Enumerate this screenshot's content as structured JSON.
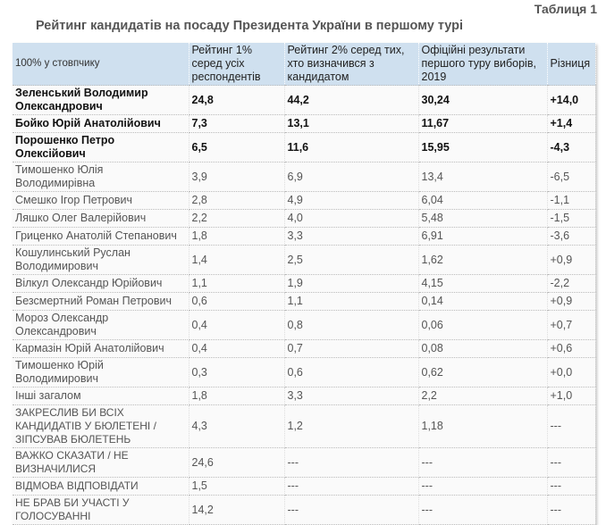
{
  "table_label": "Таблиця 1",
  "title": "Рейтинг кандидатів на посаду Президента України в першому турі",
  "header": {
    "col1": "100% у стовпчику",
    "col2": "Рейтинг 1% серед усіх респондентів",
    "col3": "Рейтинг 2% серед тих, хто визначився з кандидатом",
    "col4": "Офіційні результати першого туру виборів, 2019",
    "col5": "Різниця"
  },
  "rows": [
    {
      "name": "Зеленський Володимир Олександрович",
      "r1": "24,8",
      "r2": "44,2",
      "official": "30,24",
      "diff": "+14,0",
      "bold": true
    },
    {
      "name": "Бойко Юрій Анатолійович",
      "r1": "7,3",
      "r2": "13,1",
      "official": "11,67",
      "diff": "+1,4",
      "bold": true
    },
    {
      "name": "Порошенко Петро Олексійович",
      "r1": "6,5",
      "r2": "11,6",
      "official": "15,95",
      "diff": "-4,3",
      "bold": true
    },
    {
      "name": "Тимошенко Юлія Володимирівна",
      "r1": "3,9",
      "r2": "6,9",
      "official": "13,4",
      "diff": "-6,5"
    },
    {
      "name": "Смешко Ігор Петрович",
      "r1": "2,8",
      "r2": "4,9",
      "official": "6,04",
      "diff": "-1,1"
    },
    {
      "name": "Ляшко Олег Валерійович",
      "r1": "2,2",
      "r2": "4,0",
      "official": "5,48",
      "diff": "-1,5"
    },
    {
      "name": "Гриценко Анатолій Степанович",
      "r1": "1,8",
      "r2": "3,3",
      "official": "6,91",
      "diff": "-3,6"
    },
    {
      "name": "Кошулинський Руслан Володимирович",
      "r1": "1,4",
      "r2": "2,5",
      "official": "1,62",
      "diff": "+0,9"
    },
    {
      "name": "Вілкул Олександр Юрійович",
      "r1": "1,1",
      "r2": "1,9",
      "official": "4,15",
      "diff": "-2,2"
    },
    {
      "name": "Безсмертний Роман Петрович",
      "r1": "0,6",
      "r2": "1,1",
      "official": "0,14",
      "diff": "+0,9"
    },
    {
      "name": "Мороз Олександр Олександрович",
      "r1": "0,4",
      "r2": "0,8",
      "official": "0,06",
      "diff": "+0,7"
    },
    {
      "name": "Кармазін Юрій Анатолійович",
      "r1": "0,4",
      "r2": "0,7",
      "official": "0,08",
      "diff": "+0,6"
    },
    {
      "name": "Тимошенко Юрій Володимирович",
      "r1": "0,3",
      "r2": "0,6",
      "official": "0,62",
      "diff": "+0,0"
    },
    {
      "name": "Інші загалом",
      "r1": "1,8",
      "r2": "3,3",
      "official": "2,2",
      "diff": "+1,0"
    },
    {
      "name": "ЗАКРЕСЛИВ БИ ВСІХ КАНДИДАТІВ У БЮЛЕТЕНІ / ЗІПСУВАВ БЮЛЕТЕНЬ",
      "r1": "4,3",
      "r2": "1,2",
      "official": "1,18",
      "diff": "---"
    },
    {
      "name": "ВАЖКО СКАЗАТИ / НЕ ВИЗНАЧИЛИСЯ",
      "r1": "24,6",
      "r2": "---",
      "official": "---",
      "diff": "---"
    },
    {
      "name": "ВІДМОВА ВІДПОВІДАТИ",
      "r1": "1,5",
      "r2": "---",
      "official": "---",
      "diff": "---"
    },
    {
      "name": "НЕ БРАВ БИ УЧАСТІ У ГОЛОСУВАННІ",
      "r1": "14,2",
      "r2": "---",
      "official": "---",
      "diff": "---"
    }
  ],
  "colors": {
    "header_bg": "#cfe0ef",
    "title_text": "#555555"
  }
}
